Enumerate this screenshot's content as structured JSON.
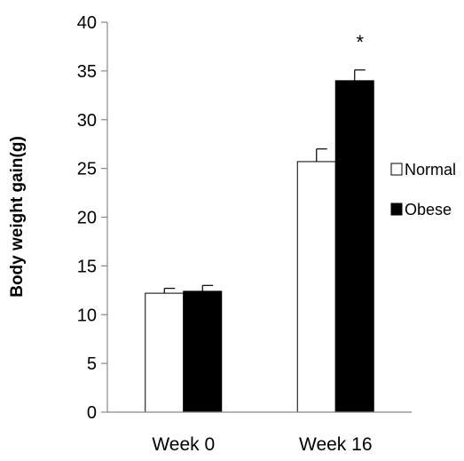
{
  "chart_data": {
    "type": "bar",
    "title": "",
    "xlabel": "",
    "ylabel": "Body weight gain(g)",
    "ylim": [
      0,
      40
    ],
    "yticks": [
      0,
      5,
      10,
      15,
      20,
      25,
      30,
      35,
      40
    ],
    "grid": false,
    "legend_position": "right",
    "categories": [
      "Week 0",
      "Week 16"
    ],
    "series": [
      {
        "name": "Normal",
        "color": "#ffffff",
        "values": [
          12.2,
          25.7
        ],
        "errors": [
          0.5,
          1.3
        ]
      },
      {
        "name": "Obese",
        "color": "#000000",
        "values": [
          12.4,
          34.0
        ],
        "errors": [
          0.6,
          1.1
        ]
      }
    ],
    "annotations": [
      {
        "text": "*",
        "category": "Week 16",
        "series": "Obese"
      }
    ]
  }
}
